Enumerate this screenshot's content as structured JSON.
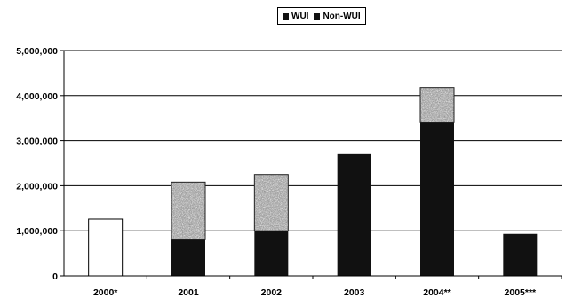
{
  "chart_data": {
    "type": "bar",
    "stacked": true,
    "categories": [
      "2000*",
      "2001",
      "2002",
      "2003",
      "2004**",
      "2005***"
    ],
    "series": [
      {
        "name": "WUI",
        "values": [
          0,
          800000,
          1000000,
          2700000,
          3400000,
          930000
        ]
      },
      {
        "name": "Non-WUI",
        "values": [
          0,
          1280000,
          1250000,
          0,
          780000,
          0
        ]
      }
    ],
    "unsplit_totals": [
      1260000,
      0,
      0,
      0,
      0,
      0
    ],
    "yticks": [
      "0",
      "1,000,000",
      "2,000,000",
      "3,000,000",
      "4,000,000",
      "5,000,000"
    ],
    "ylim": [
      0,
      5000000
    ],
    "grid": true,
    "legend_position": "top-center",
    "colors": {
      "wui": "#111111",
      "non_wui": "#9a9a9a",
      "unsplit": "#ffffff"
    }
  }
}
